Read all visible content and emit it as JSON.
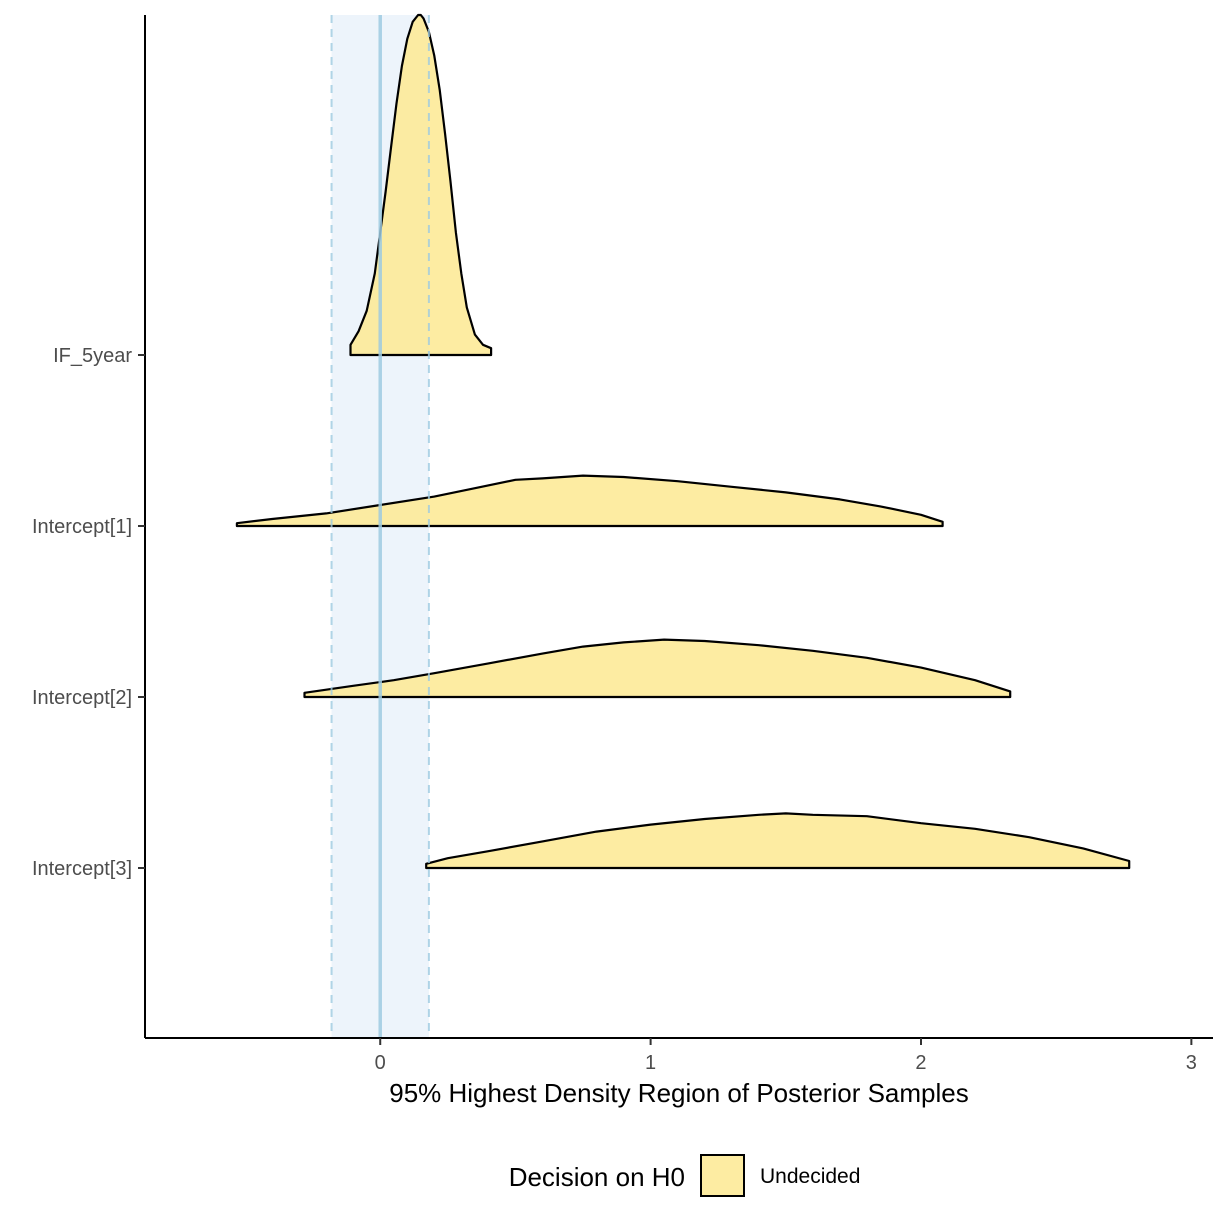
{
  "chart_data": {
    "type": "ridgeline-density",
    "title": "",
    "xlabel": "95% Highest Density Region of Posterior Samples",
    "ylabel": "",
    "xlim": [
      -0.87,
      3.08
    ],
    "x_ticks": [
      "0",
      "1",
      "2",
      "3"
    ],
    "x_tick_values": [
      0,
      1,
      2,
      3
    ],
    "rope": {
      "low": -0.18,
      "high": 0.18,
      "center": 0
    },
    "colors": {
      "density_fill": "#fde992",
      "density_stroke": "#000000",
      "rope_fill": "#deebf7",
      "rope_line": "#9ecae1"
    },
    "grid": false,
    "legend": {
      "title": "Decision on H0",
      "entries": [
        "Undecided"
      ],
      "placement": "bottom"
    },
    "series": [
      {
        "name": "IF_5year",
        "x": [
          -0.11,
          -0.08,
          -0.05,
          -0.02,
          0.0,
          0.02,
          0.04,
          0.06,
          0.08,
          0.1,
          0.12,
          0.14,
          0.15,
          0.16,
          0.18,
          0.2,
          0.22,
          0.24,
          0.26,
          0.28,
          0.3,
          0.32,
          0.35,
          0.38,
          0.41
        ],
        "density": [
          0.03,
          0.07,
          0.13,
          0.24,
          0.36,
          0.48,
          0.61,
          0.74,
          0.85,
          0.93,
          0.98,
          1.0,
          1.0,
          0.99,
          0.95,
          0.88,
          0.78,
          0.65,
          0.51,
          0.36,
          0.24,
          0.14,
          0.06,
          0.03,
          0.02
        ]
      },
      {
        "name": "Intercept[1]",
        "x": [
          -0.53,
          -0.4,
          -0.2,
          0.0,
          0.2,
          0.35,
          0.5,
          0.6,
          0.75,
          0.9,
          1.1,
          1.3,
          1.5,
          1.7,
          1.85,
          2.0,
          2.08
        ],
        "density": [
          0.02,
          0.05,
          0.09,
          0.15,
          0.21,
          0.27,
          0.33,
          0.34,
          0.36,
          0.35,
          0.32,
          0.28,
          0.24,
          0.19,
          0.14,
          0.08,
          0.03
        ]
      },
      {
        "name": "Intercept[2]",
        "x": [
          -0.28,
          -0.1,
          0.05,
          0.2,
          0.4,
          0.6,
          0.75,
          0.9,
          1.05,
          1.2,
          1.4,
          1.6,
          1.8,
          2.0,
          2.2,
          2.33
        ],
        "density": [
          0.03,
          0.08,
          0.12,
          0.17,
          0.24,
          0.31,
          0.36,
          0.39,
          0.41,
          0.4,
          0.37,
          0.33,
          0.28,
          0.21,
          0.12,
          0.04
        ]
      },
      {
        "name": "Intercept[3]",
        "x": [
          0.17,
          0.25,
          0.4,
          0.6,
          0.8,
          1.0,
          1.2,
          1.4,
          1.5,
          1.6,
          1.8,
          2.0,
          2.2,
          2.4,
          2.6,
          2.77
        ],
        "density": [
          0.03,
          0.07,
          0.12,
          0.19,
          0.26,
          0.31,
          0.35,
          0.38,
          0.39,
          0.38,
          0.37,
          0.32,
          0.28,
          0.22,
          0.14,
          0.05
        ]
      }
    ]
  }
}
